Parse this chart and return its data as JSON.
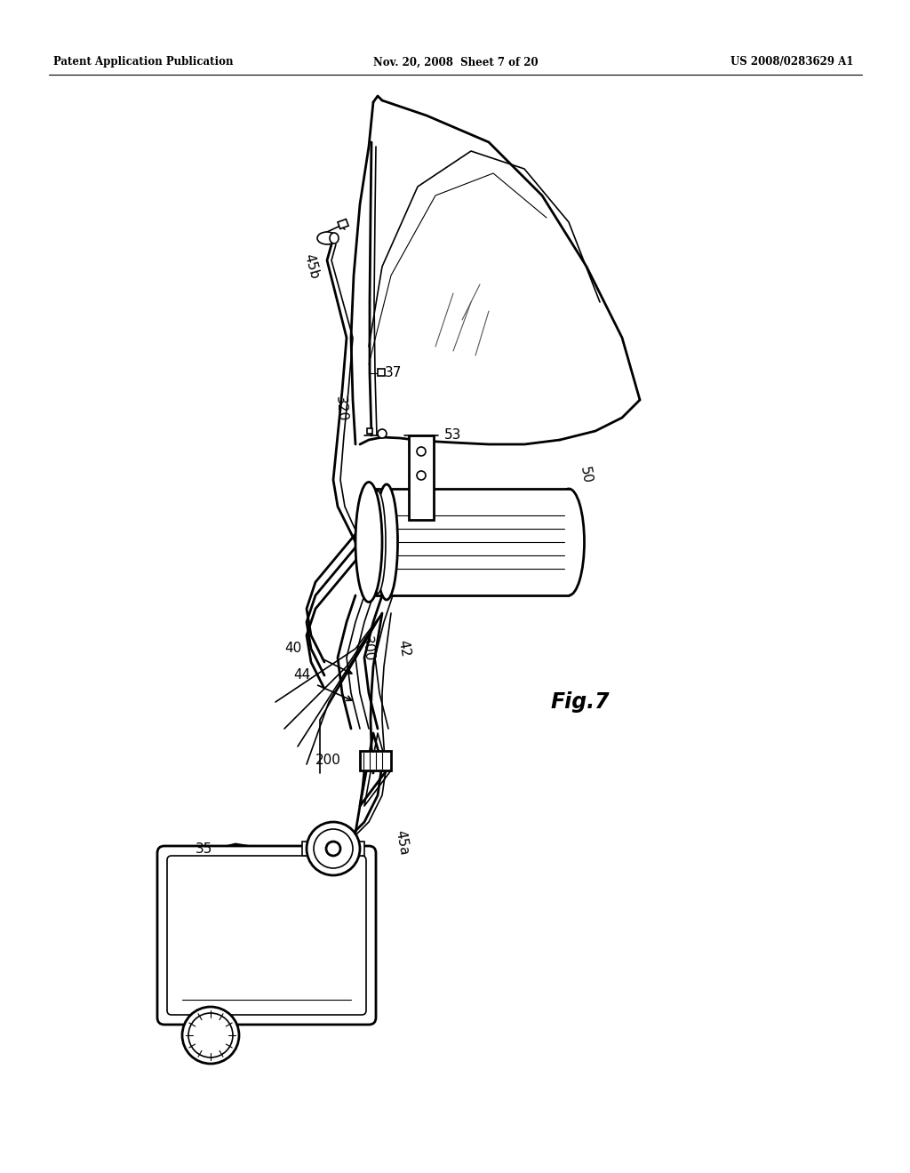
{
  "bg_color": "#ffffff",
  "header_left": "Patent Application Publication",
  "header_center": "Nov. 20, 2008  Sheet 7 of 20",
  "header_right": "US 2008/0283629 A1",
  "fig_label": "Fig.7"
}
